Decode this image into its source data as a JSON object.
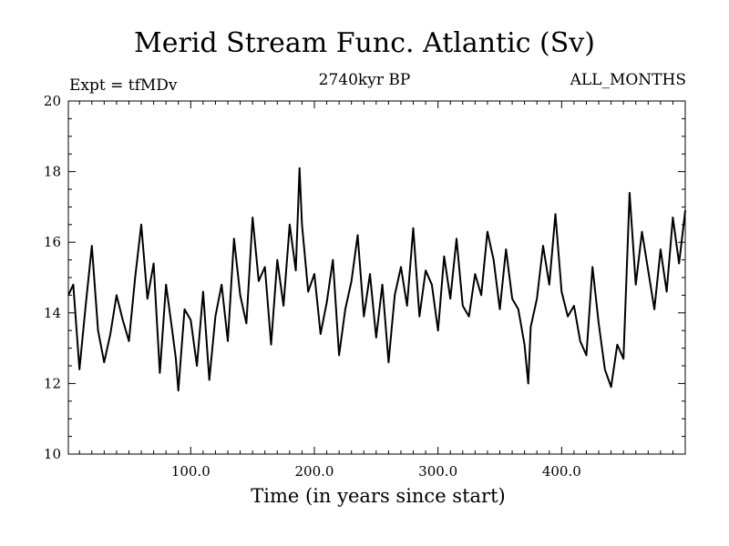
{
  "chart_data": {
    "type": "line",
    "title": "Merid Stream Func. Atlantic (Sv)",
    "subtitle_left": "Expt = tfMDv",
    "subtitle_center": "2740kyr BP",
    "subtitle_right": "ALL_MONTHS",
    "xlabel": "Time (in years since start)",
    "ylabel": "",
    "xlim": [
      1,
      500
    ],
    "ylim": [
      10,
      20
    ],
    "xticks": [
      100.0,
      200.0,
      300.0,
      400.0
    ],
    "xtick_labels": [
      "100.0",
      "200.0",
      "300.0",
      "400.0"
    ],
    "yticks": [
      10,
      12,
      14,
      16,
      18,
      20
    ],
    "ytick_labels": [
      "10",
      "12",
      "14",
      "16",
      "18",
      "20"
    ],
    "grid": false,
    "series": [
      {
        "name": "tfMDv",
        "x": [
          1,
          5,
          10,
          15,
          20,
          25,
          30,
          35,
          40,
          45,
          50,
          55,
          60,
          65,
          70,
          75,
          80,
          85,
          88,
          90,
          95,
          100,
          105,
          110,
          115,
          120,
          125,
          130,
          135,
          140,
          145,
          150,
          155,
          160,
          165,
          170,
          175,
          180,
          185,
          188,
          190,
          195,
          200,
          205,
          210,
          215,
          220,
          225,
          230,
          235,
          240,
          245,
          250,
          255,
          260,
          265,
          270,
          275,
          280,
          285,
          290,
          295,
          300,
          305,
          310,
          315,
          320,
          325,
          330,
          335,
          340,
          345,
          350,
          355,
          360,
          365,
          370,
          373,
          375,
          380,
          385,
          390,
          395,
          400,
          405,
          410,
          415,
          420,
          425,
          430,
          435,
          440,
          445,
          450,
          455,
          460,
          465,
          470,
          475,
          480,
          485,
          490,
          495,
          500
        ],
        "values": [
          14.5,
          14.8,
          12.4,
          14.2,
          15.9,
          13.5,
          12.6,
          13.4,
          14.5,
          13.8,
          13.2,
          15.0,
          16.5,
          14.4,
          15.4,
          12.3,
          14.8,
          13.5,
          12.7,
          11.8,
          14.1,
          13.8,
          12.5,
          14.6,
          12.1,
          13.9,
          14.8,
          13.2,
          16.1,
          14.5,
          13.7,
          16.7,
          14.9,
          15.3,
          13.1,
          15.5,
          14.2,
          16.5,
          15.2,
          18.1,
          16.5,
          14.6,
          15.1,
          13.4,
          14.3,
          15.5,
          12.8,
          14.1,
          14.9,
          16.2,
          13.9,
          15.1,
          13.3,
          14.8,
          12.6,
          14.5,
          15.3,
          14.2,
          16.4,
          13.9,
          15.2,
          14.8,
          13.5,
          15.6,
          14.4,
          16.1,
          14.2,
          13.9,
          15.1,
          14.5,
          16.3,
          15.5,
          14.1,
          15.8,
          14.4,
          14.1,
          13.1,
          12.0,
          13.6,
          14.4,
          15.9,
          14.8,
          16.8,
          14.6,
          13.9,
          14.2,
          13.2,
          12.8,
          15.3,
          13.7,
          12.4,
          11.9,
          13.1,
          12.7,
          17.4,
          14.8,
          16.3,
          15.2,
          14.1,
          15.8,
          14.6,
          16.7,
          15.4,
          16.9
        ]
      }
    ]
  }
}
